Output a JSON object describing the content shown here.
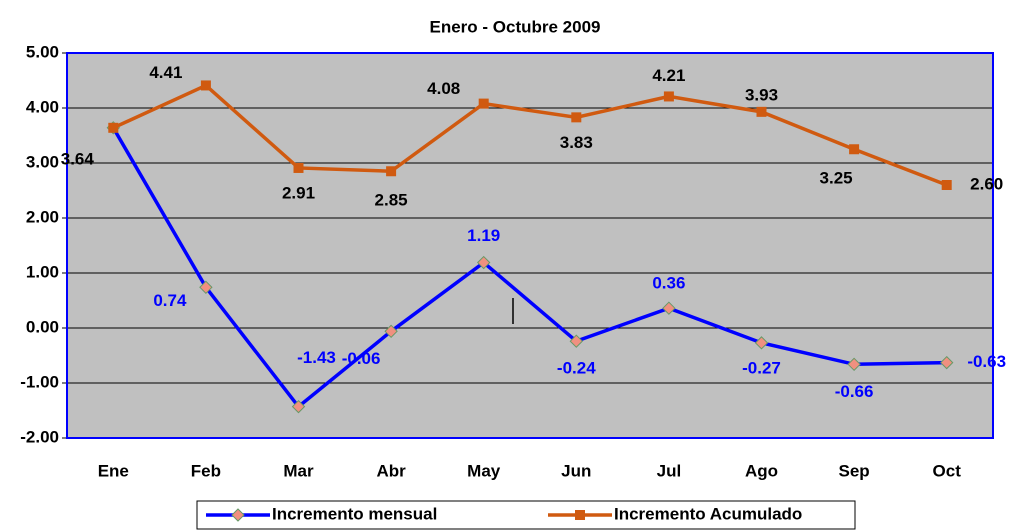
{
  "chart_data": {
    "type": "line",
    "title": "Enero - Octubre 2009",
    "categories": [
      "Ene",
      "Feb",
      "Mar",
      "Abr",
      "May",
      "Jun",
      "Jul",
      "Ago",
      "Sep",
      "Oct"
    ],
    "series": [
      {
        "name": "Incremento mensual",
        "color": "#0000ff",
        "values": [
          3.64,
          0.74,
          -1.43,
          -0.06,
          1.19,
          -0.24,
          0.36,
          -0.27,
          -0.66,
          -0.63
        ],
        "value_labels": [
          null,
          "0.74",
          "-1.43",
          "-0.06",
          "1.19",
          "-0.24",
          "0.36",
          "-0.27",
          "-0.66",
          "-0.63"
        ]
      },
      {
        "name": "Incremento Acumulado",
        "color": "#d05a10",
        "values": [
          3.64,
          4.41,
          2.91,
          2.85,
          4.08,
          3.83,
          4.21,
          3.93,
          3.25,
          2.6
        ],
        "value_labels": [
          "3.64",
          "4.41",
          "2.91",
          "2.85",
          "4.08",
          "3.83",
          "4.21",
          "3.93",
          "3.25",
          "2.60"
        ]
      }
    ],
    "ylim": [
      -2,
      5
    ],
    "yticks": [
      {
        "value": -2,
        "label": "-2.00"
      },
      {
        "value": -1,
        "label": "-1.00"
      },
      {
        "value": 0,
        "label": "0.00"
      },
      {
        "value": 1,
        "label": "1.00"
      },
      {
        "value": 2,
        "label": "2.00"
      },
      {
        "value": 3,
        "label": "3.00"
      },
      {
        "value": 4,
        "label": "4.00"
      },
      {
        "value": 5,
        "label": "5.00"
      }
    ],
    "grid": true,
    "legend": "bottom"
  }
}
